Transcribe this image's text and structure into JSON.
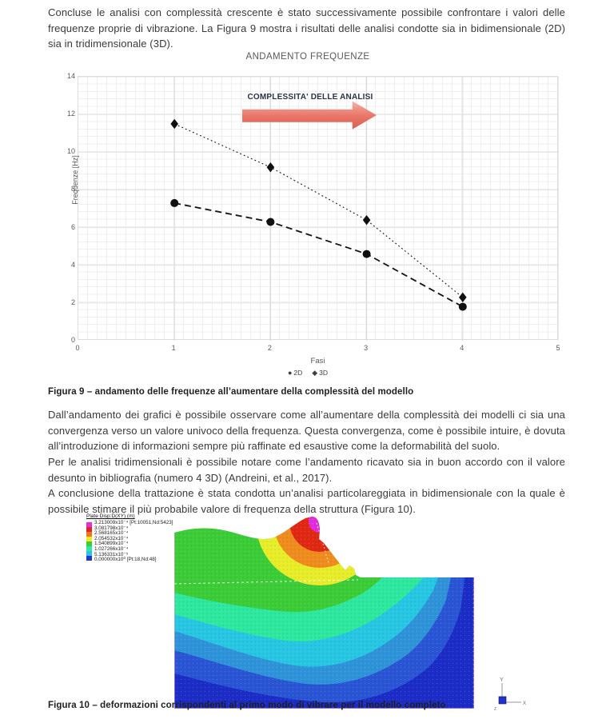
{
  "document": {
    "paragraph_intro": "Concluse le analisi con complessità crescente è stato successivamente possibile confrontare i valori delle frequenze proprie di vibrazione. La Figura 9 mostra i risultati delle analisi condotte sia in bidimensionale (2D) sia in tridimensionale (3D).",
    "figure9_caption": "Figura 9 – andamento delle frequenze all’aumentare della complessità del modello",
    "paragraph_analysis_1": "Dall’andamento dei grafici è possibile osservare come all’aumentare della complessità dei modelli ci sia una convergenza verso un valore univoco della frequenza. Questa convergenza, come è possibile intuire, è dovuta all’introduzione di informazioni sempre più raffinate ed esaustive come la deformabilità del suolo.",
    "paragraph_analysis_2": "Per le analisi tridimensionali è possibile notare come l’andamento ricavato sia in buon accordo con il valore desunto in bibliografia (numero 4 3D) (Andreini, et al., 2017).",
    "paragraph_analysis_3": "A conclusione della trattazione è stata condotta un’analisi particolareggiata in bidimensionale con la quale è possibile stimare il più probabile valore di frequenza della struttura (Figura 10).",
    "figure10_caption": "Figura 10 – deformazioni corrispondenti al primo modo di vibrare per il modello completo"
  },
  "chart_data": {
    "type": "line",
    "title": "ANDAMENTO FREQUENZE",
    "xlabel": "Fasi",
    "ylabel": "Frequenze [Hz]",
    "xlim": [
      0,
      5
    ],
    "ylim": [
      0,
      14
    ],
    "x_ticks": [
      0,
      1,
      2,
      3,
      4,
      5
    ],
    "y_ticks": [
      0,
      2,
      4,
      6,
      8,
      10,
      12,
      14
    ],
    "grid": true,
    "legend_position": "bottom",
    "annotation": "COMPLESSITA' DELLE ANALISI",
    "x": [
      1,
      2,
      3,
      4
    ],
    "series": [
      {
        "name": "2D",
        "marker": "circle",
        "line": "dashed",
        "values": [
          7.3,
          6.3,
          4.6,
          1.8
        ]
      },
      {
        "name": "3D",
        "marker": "diamond",
        "line": "dotted",
        "values": [
          11.5,
          9.2,
          6.4,
          2.3
        ]
      }
    ]
  },
  "fem_figure": {
    "legend_title": "Plate Disp:D(XY)  (m)",
    "legend_entries": [
      {
        "value": "3.213009x10⁻⁴",
        "note": "[Pt:10051,Nd:5423]",
        "color": "#e62ce0"
      },
      {
        "value": "3.081798x10⁻⁴",
        "note": "",
        "color": "#e42520"
      },
      {
        "value": "2.568165x10⁻⁴",
        "note": "",
        "color": "#f0761c"
      },
      {
        "value": "2.054532x10⁻⁴",
        "note": "",
        "color": "#eeea28"
      },
      {
        "value": "1.540899x10⁻⁴",
        "note": "",
        "color": "#3ecc34"
      },
      {
        "value": "1.027266x10⁻⁴",
        "note": "",
        "color": "#2ee8a0"
      },
      {
        "value": "5.136331x10⁻⁵",
        "note": "",
        "color": "#28c2ea"
      },
      {
        "value": "0.000000x10⁰",
        "note": "[Pt:18,Nd:48]",
        "color": "#2236d4"
      }
    ],
    "triad": {
      "x": "X",
      "y": "Y",
      "z": "Z"
    }
  },
  "colors": {
    "arrow_fill": "#e87466",
    "annotation_text": "#2c3347",
    "series_color": "#141414",
    "band_green": "#3ccc38",
    "band_yellow": "#e8ed2a",
    "band_orange": "#f08c1e",
    "band_red": "#e02814",
    "band_magenta": "#e22ce0",
    "band_spring": "#2de89e",
    "band_cyan": "#27c6e2",
    "band_sky": "#2f93da",
    "band_midblue": "#2a55d4",
    "band_darkblue": "#1c2cc6"
  }
}
